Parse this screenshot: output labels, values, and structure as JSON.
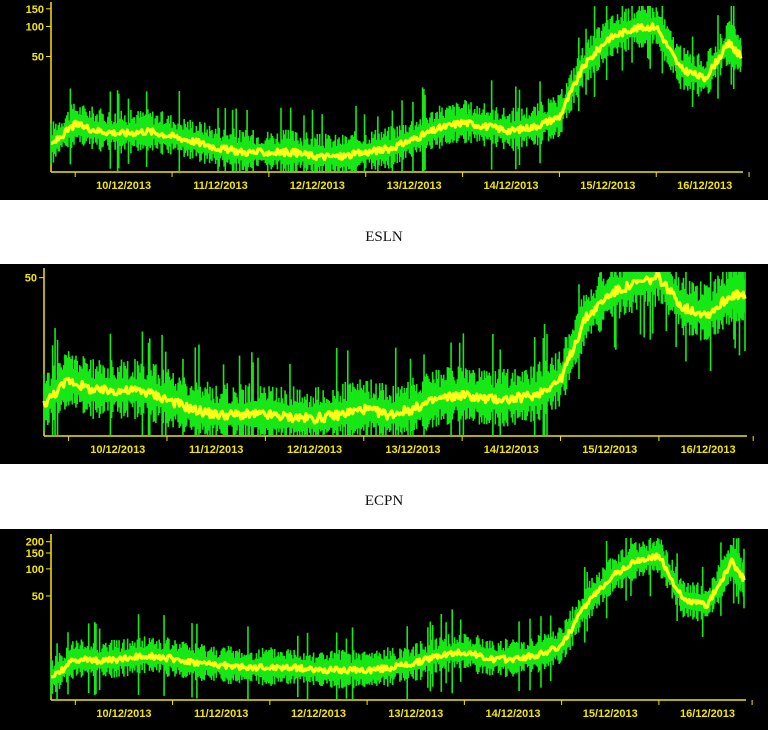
{
  "colors": {
    "background": "#000000",
    "raw": "#17e817",
    "smooth": "#ffff1a",
    "axis": "#f2e600"
  },
  "chart_data": [
    {
      "type": "line",
      "title": "",
      "xlabel": "",
      "ylabel": "",
      "yscale": "log",
      "grid": false,
      "x_ticks": [
        "10/12/2013",
        "11/12/2013",
        "12/12/2013",
        "13/12/2013",
        "14/12/2013",
        "15/12/2013",
        "16/12/2013"
      ],
      "y_ticks": [
        "150",
        "100",
        "50"
      ],
      "ylim": [
        3.5,
        160
      ],
      "series": [
        {
          "color": "#ffff1a",
          "x": [
            "09/12/2013 18:00",
            "10/12/2013 00:00",
            "10/12/2013 06:00",
            "10/12/2013 12:00",
            "10/12/2013 18:00",
            "11/12/2013 00:00",
            "11/12/2013 06:00",
            "11/12/2013 12:00",
            "11/12/2013 18:00",
            "12/12/2013 00:00",
            "12/12/2013 06:00",
            "12/12/2013 12:00",
            "12/12/2013 18:00",
            "13/12/2013 00:00",
            "13/12/2013 06:00",
            "13/12/2013 12:00",
            "13/12/2013 18:00",
            "14/12/2013 00:00",
            "14/12/2013 06:00",
            "14/12/2013 12:00",
            "14/12/2013 18:00",
            "15/12/2013 00:00",
            "15/12/2013 06:00",
            "15/12/2013 12:00",
            "15/12/2013 18:00",
            "16/12/2013 00:00",
            "16/12/2013 06:00",
            "16/12/2013 12:00",
            "16/12/2013 18:00",
            "16/12/2013 21:00"
          ],
          "values": [
            6.5,
            10.5,
            9,
            8.5,
            9,
            8,
            7,
            6,
            5.5,
            5.5,
            5.5,
            5,
            5,
            5.5,
            6,
            7.5,
            9.5,
            11,
            10,
            9,
            10,
            12.5,
            40,
            75,
            95,
            100,
            38,
            30,
            68,
            50
          ]
        }
      ]
    },
    {
      "type": "line",
      "title": "ESLN",
      "xlabel": "",
      "ylabel": "",
      "yscale": "log",
      "grid": false,
      "x_ticks": [
        "10/12/2013",
        "11/12/2013",
        "12/12/2013",
        "13/12/2013",
        "14/12/2013",
        "15/12/2013",
        "16/12/2013"
      ],
      "y_ticks": [
        "50"
      ],
      "ylim": [
        3.5,
        55
      ],
      "series": [
        {
          "color": "#ffff1a",
          "x": [
            "09/12/2013 18:00",
            "10/12/2013 00:00",
            "10/12/2013 06:00",
            "10/12/2013 12:00",
            "10/12/2013 18:00",
            "11/12/2013 00:00",
            "11/12/2013 06:00",
            "11/12/2013 12:00",
            "11/12/2013 18:00",
            "12/12/2013 00:00",
            "12/12/2013 06:00",
            "12/12/2013 12:00",
            "12/12/2013 18:00",
            "13/12/2013 00:00",
            "13/12/2013 06:00",
            "13/12/2013 12:00",
            "13/12/2013 18:00",
            "14/12/2013 00:00",
            "14/12/2013 06:00",
            "14/12/2013 12:00",
            "14/12/2013 18:00",
            "15/12/2013 00:00",
            "15/12/2013 06:00",
            "15/12/2013 12:00",
            "15/12/2013 18:00",
            "16/12/2013 00:00",
            "16/12/2013 06:00",
            "16/12/2013 12:00",
            "16/12/2013 18:00",
            "16/12/2013 21:00"
          ],
          "values": [
            6,
            9,
            7.5,
            7.5,
            7.5,
            6.5,
            5.5,
            5,
            5,
            5,
            4.8,
            4.7,
            5,
            5.5,
            5,
            5.5,
            6.5,
            7,
            6.5,
            6.5,
            7,
            9,
            25,
            38,
            45,
            50,
            30,
            27,
            38,
            36
          ]
        }
      ]
    },
    {
      "type": "line",
      "title": "ECPN",
      "xlabel": "",
      "ylabel": "",
      "yscale": "log",
      "grid": false,
      "x_ticks": [
        "10/12/2013",
        "11/12/2013",
        "12/12/2013",
        "13/12/2013",
        "14/12/2013",
        "15/12/2013",
        "16/12/2013"
      ],
      "y_ticks": [
        "200",
        "150",
        "100",
        "50"
      ],
      "ylim": [
        3.5,
        220
      ],
      "series": [
        {
          "color": "#ffff1a",
          "x": [
            "09/12/2013 18:00",
            "10/12/2013 00:00",
            "10/12/2013 06:00",
            "10/12/2013 12:00",
            "10/12/2013 18:00",
            "11/12/2013 00:00",
            "11/12/2013 06:00",
            "11/12/2013 12:00",
            "11/12/2013 18:00",
            "12/12/2013 00:00",
            "12/12/2013 06:00",
            "12/12/2013 12:00",
            "12/12/2013 18:00",
            "13/12/2013 00:00",
            "13/12/2013 06:00",
            "13/12/2013 12:00",
            "13/12/2013 18:00",
            "14/12/2013 00:00",
            "14/12/2013 06:00",
            "14/12/2013 12:00",
            "14/12/2013 18:00",
            "15/12/2013 00:00",
            "15/12/2013 06:00",
            "15/12/2013 12:00",
            "15/12/2013 18:00",
            "16/12/2013 00:00",
            "16/12/2013 06:00",
            "16/12/2013 12:00",
            "16/12/2013 18:00",
            "16/12/2013 21:00"
          ],
          "values": [
            6,
            10,
            9.5,
            10,
            11,
            10,
            9,
            8.5,
            8,
            8,
            8,
            7.5,
            7.5,
            7.5,
            8,
            9,
            11,
            12,
            10,
            10,
            11,
            14,
            40,
            80,
            120,
            140,
            45,
            40,
            120,
            75
          ]
        }
      ]
    }
  ]
}
